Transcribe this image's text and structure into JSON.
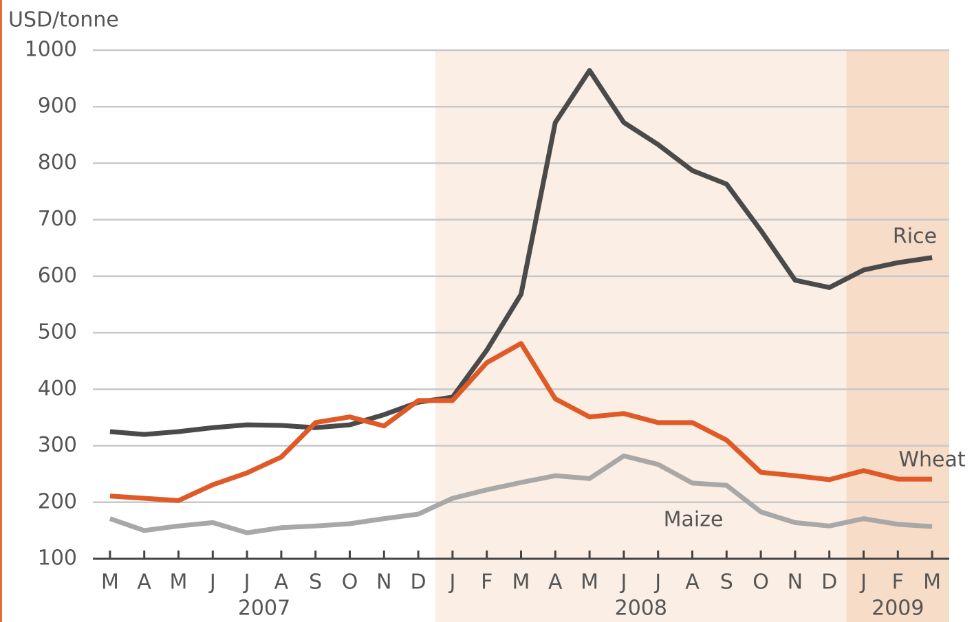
{
  "chart_data": {
    "type": "line",
    "y_label": "USD/tonne",
    "categories": [
      "M",
      "A",
      "M",
      "J",
      "J",
      "A",
      "S",
      "O",
      "N",
      "D",
      "J",
      "F",
      "M",
      "A",
      "M",
      "J",
      "J",
      "A",
      "S",
      "O",
      "N",
      "D",
      "J",
      "F",
      "M"
    ],
    "years": [
      "2007",
      "2008",
      "2009"
    ],
    "ylim": [
      100,
      1000
    ],
    "yticks": [
      100,
      200,
      300,
      400,
      500,
      600,
      700,
      800,
      900,
      1000
    ],
    "grid": true,
    "series": [
      {
        "name": "Rice",
        "color": "#4a4a4a",
        "values": [
          325,
          320,
          325,
          332,
          337,
          336,
          332,
          337,
          355,
          377,
          386,
          469,
          568,
          872,
          964,
          872,
          833,
          787,
          763,
          681,
          593,
          580,
          611,
          624,
          633
        ]
      },
      {
        "name": "Wheat",
        "color": "#e05a28",
        "values": [
          211,
          207,
          203,
          231,
          252,
          280,
          341,
          351,
          335,
          380,
          380,
          447,
          481,
          383,
          351,
          357,
          341,
          341,
          310,
          253,
          247,
          240,
          256,
          241,
          241
        ]
      },
      {
        "name": "Maize",
        "color": "#a8a8a8",
        "values": [
          171,
          150,
          158,
          164,
          146,
          155,
          158,
          162,
          171,
          179,
          207,
          222,
          235,
          247,
          242,
          282,
          267,
          234,
          230,
          183,
          164,
          158,
          171,
          161,
          157
        ]
      }
    ]
  }
}
